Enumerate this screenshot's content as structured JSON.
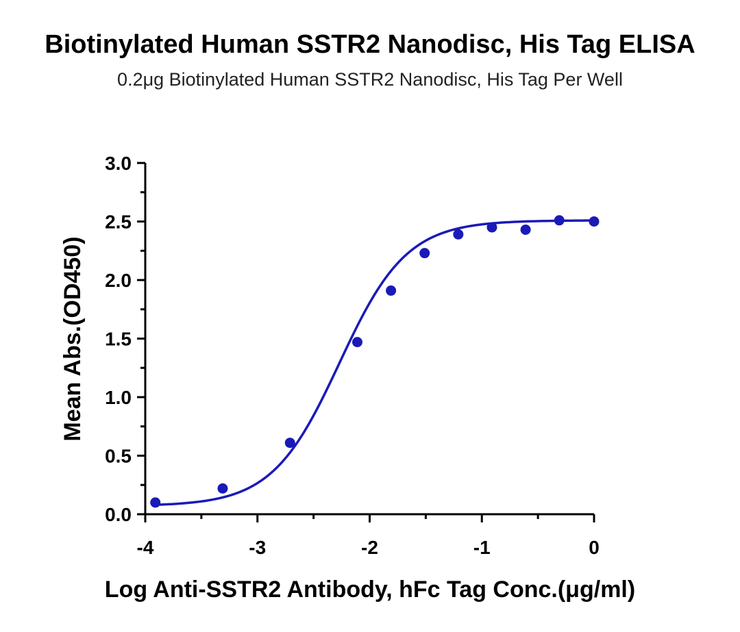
{
  "chart_data": {
    "type": "scatter",
    "title": "Biotinylated Human SSTR2 Nanodisc, His Tag ELISA",
    "subtitle": "0.2μg Biotinylated Human SSTR2 Nanodisc, His Tag Per Well",
    "xlabel": "Log Anti-SSTR2 Antibody, hFc Tag Conc.(μg/ml)",
    "ylabel": "Mean Abs.(OD450)",
    "xlim": [
      -4,
      0
    ],
    "ylim": [
      0,
      3.0
    ],
    "x_ticks": [
      -4,
      -3,
      -2,
      -1,
      0
    ],
    "x_tick_labels": [
      "-4",
      "-3",
      "-2",
      "-1",
      "0"
    ],
    "y_ticks": [
      0,
      0.5,
      1.0,
      1.5,
      2.0,
      2.5,
      3.0
    ],
    "y_tick_labels": [
      "0.0",
      "0.5",
      "1.0",
      "1.5",
      "2.0",
      "2.5",
      "3.0"
    ],
    "grid": false,
    "color": "#1a1ab8",
    "series": [
      {
        "x": [
          -3.91,
          -3.31,
          -2.71,
          -2.11,
          -1.81,
          -1.51,
          -1.21,
          -0.91,
          -0.61,
          -0.31,
          0.0
        ],
        "y": [
          0.1,
          0.22,
          0.61,
          1.47,
          1.91,
          2.23,
          2.39,
          2.45,
          2.43,
          2.51,
          2.5
        ]
      }
    ],
    "fit_curve": {
      "model": "4PL",
      "bottom": 0.07,
      "top": 2.51,
      "log_ec50": -2.27,
      "hill": 1.45
    }
  }
}
